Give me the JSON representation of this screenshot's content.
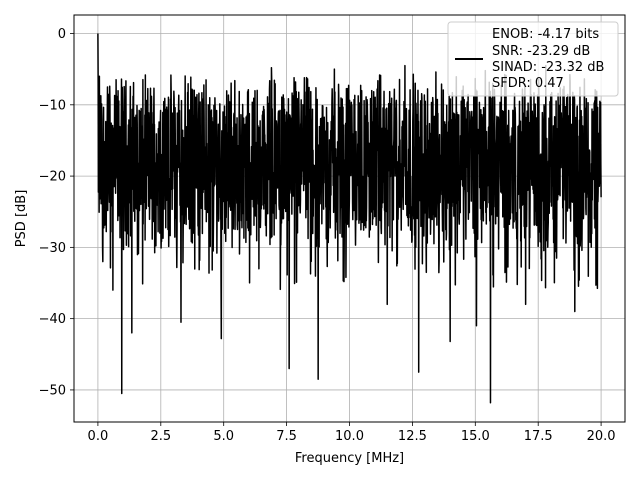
{
  "chart_data": {
    "type": "line",
    "title": "",
    "xlabel": "Frequency [MHz]",
    "ylabel": "PSD [dB]",
    "xlim": [
      -0.95,
      20.95
    ],
    "ylim": [
      -54.5,
      2.6
    ],
    "x_ticks": [
      0.0,
      2.5,
      5.0,
      7.5,
      10.0,
      12.5,
      15.0,
      17.5,
      20.0
    ],
    "x_tick_labels": [
      "0.0",
      "2.5",
      "5.0",
      "7.5",
      "10.0",
      "12.5",
      "15.0",
      "17.5",
      "20.0"
    ],
    "y_ticks": [
      0,
      -10,
      -20,
      -30,
      -40,
      -50
    ],
    "y_tick_labels": [
      "0",
      "−10",
      "−20",
      "−30",
      "−40",
      "−50"
    ],
    "grid": true,
    "legend_position": "top-right",
    "line_color": "#000000",
    "series": [
      {
        "name": "ENOB: -4.17 bits\nSNR: -23.29 dB\nSINAD: -23.32 dB\nSFDR: 0.47",
        "legend_lines": [
          "ENOB: -4.17 bits",
          "SNR: -23.29 dB",
          "SINAD: -23.32 dB",
          "SFDR: 0.47"
        ],
        "x_range": [
          0.0,
          20.0
        ],
        "approx_point_count": 2048,
        "noise_band_upper": -8,
        "noise_band_lower": -28,
        "peaks": [
          {
            "x": 0.0,
            "y": 0.0
          },
          {
            "x": 0.06,
            "y": -6.0
          },
          {
            "x": 4.3,
            "y": -6.5
          },
          {
            "x": 6.9,
            "y": -4.8
          },
          {
            "x": 9.4,
            "y": -5.0
          },
          {
            "x": 12.2,
            "y": -4.5
          },
          {
            "x": 15.4,
            "y": -5.2
          },
          {
            "x": 17.8,
            "y": -4.5
          }
        ],
        "dips": [
          {
            "x": 0.2,
            "y": -32.0
          },
          {
            "x": 0.6,
            "y": -36.0
          },
          {
            "x": 0.95,
            "y": -50.5
          },
          {
            "x": 1.35,
            "y": -42.0
          },
          {
            "x": 3.3,
            "y": -40.5
          },
          {
            "x": 4.9,
            "y": -42.8
          },
          {
            "x": 7.6,
            "y": -47.0
          },
          {
            "x": 8.75,
            "y": -48.5
          },
          {
            "x": 11.5,
            "y": -38.0
          },
          {
            "x": 12.75,
            "y": -47.5
          },
          {
            "x": 14.0,
            "y": -43.2
          },
          {
            "x": 15.05,
            "y": -41.0
          },
          {
            "x": 15.6,
            "y": -51.8
          },
          {
            "x": 17.0,
            "y": -38.0
          },
          {
            "x": 18.95,
            "y": -39.0
          }
        ]
      }
    ]
  }
}
